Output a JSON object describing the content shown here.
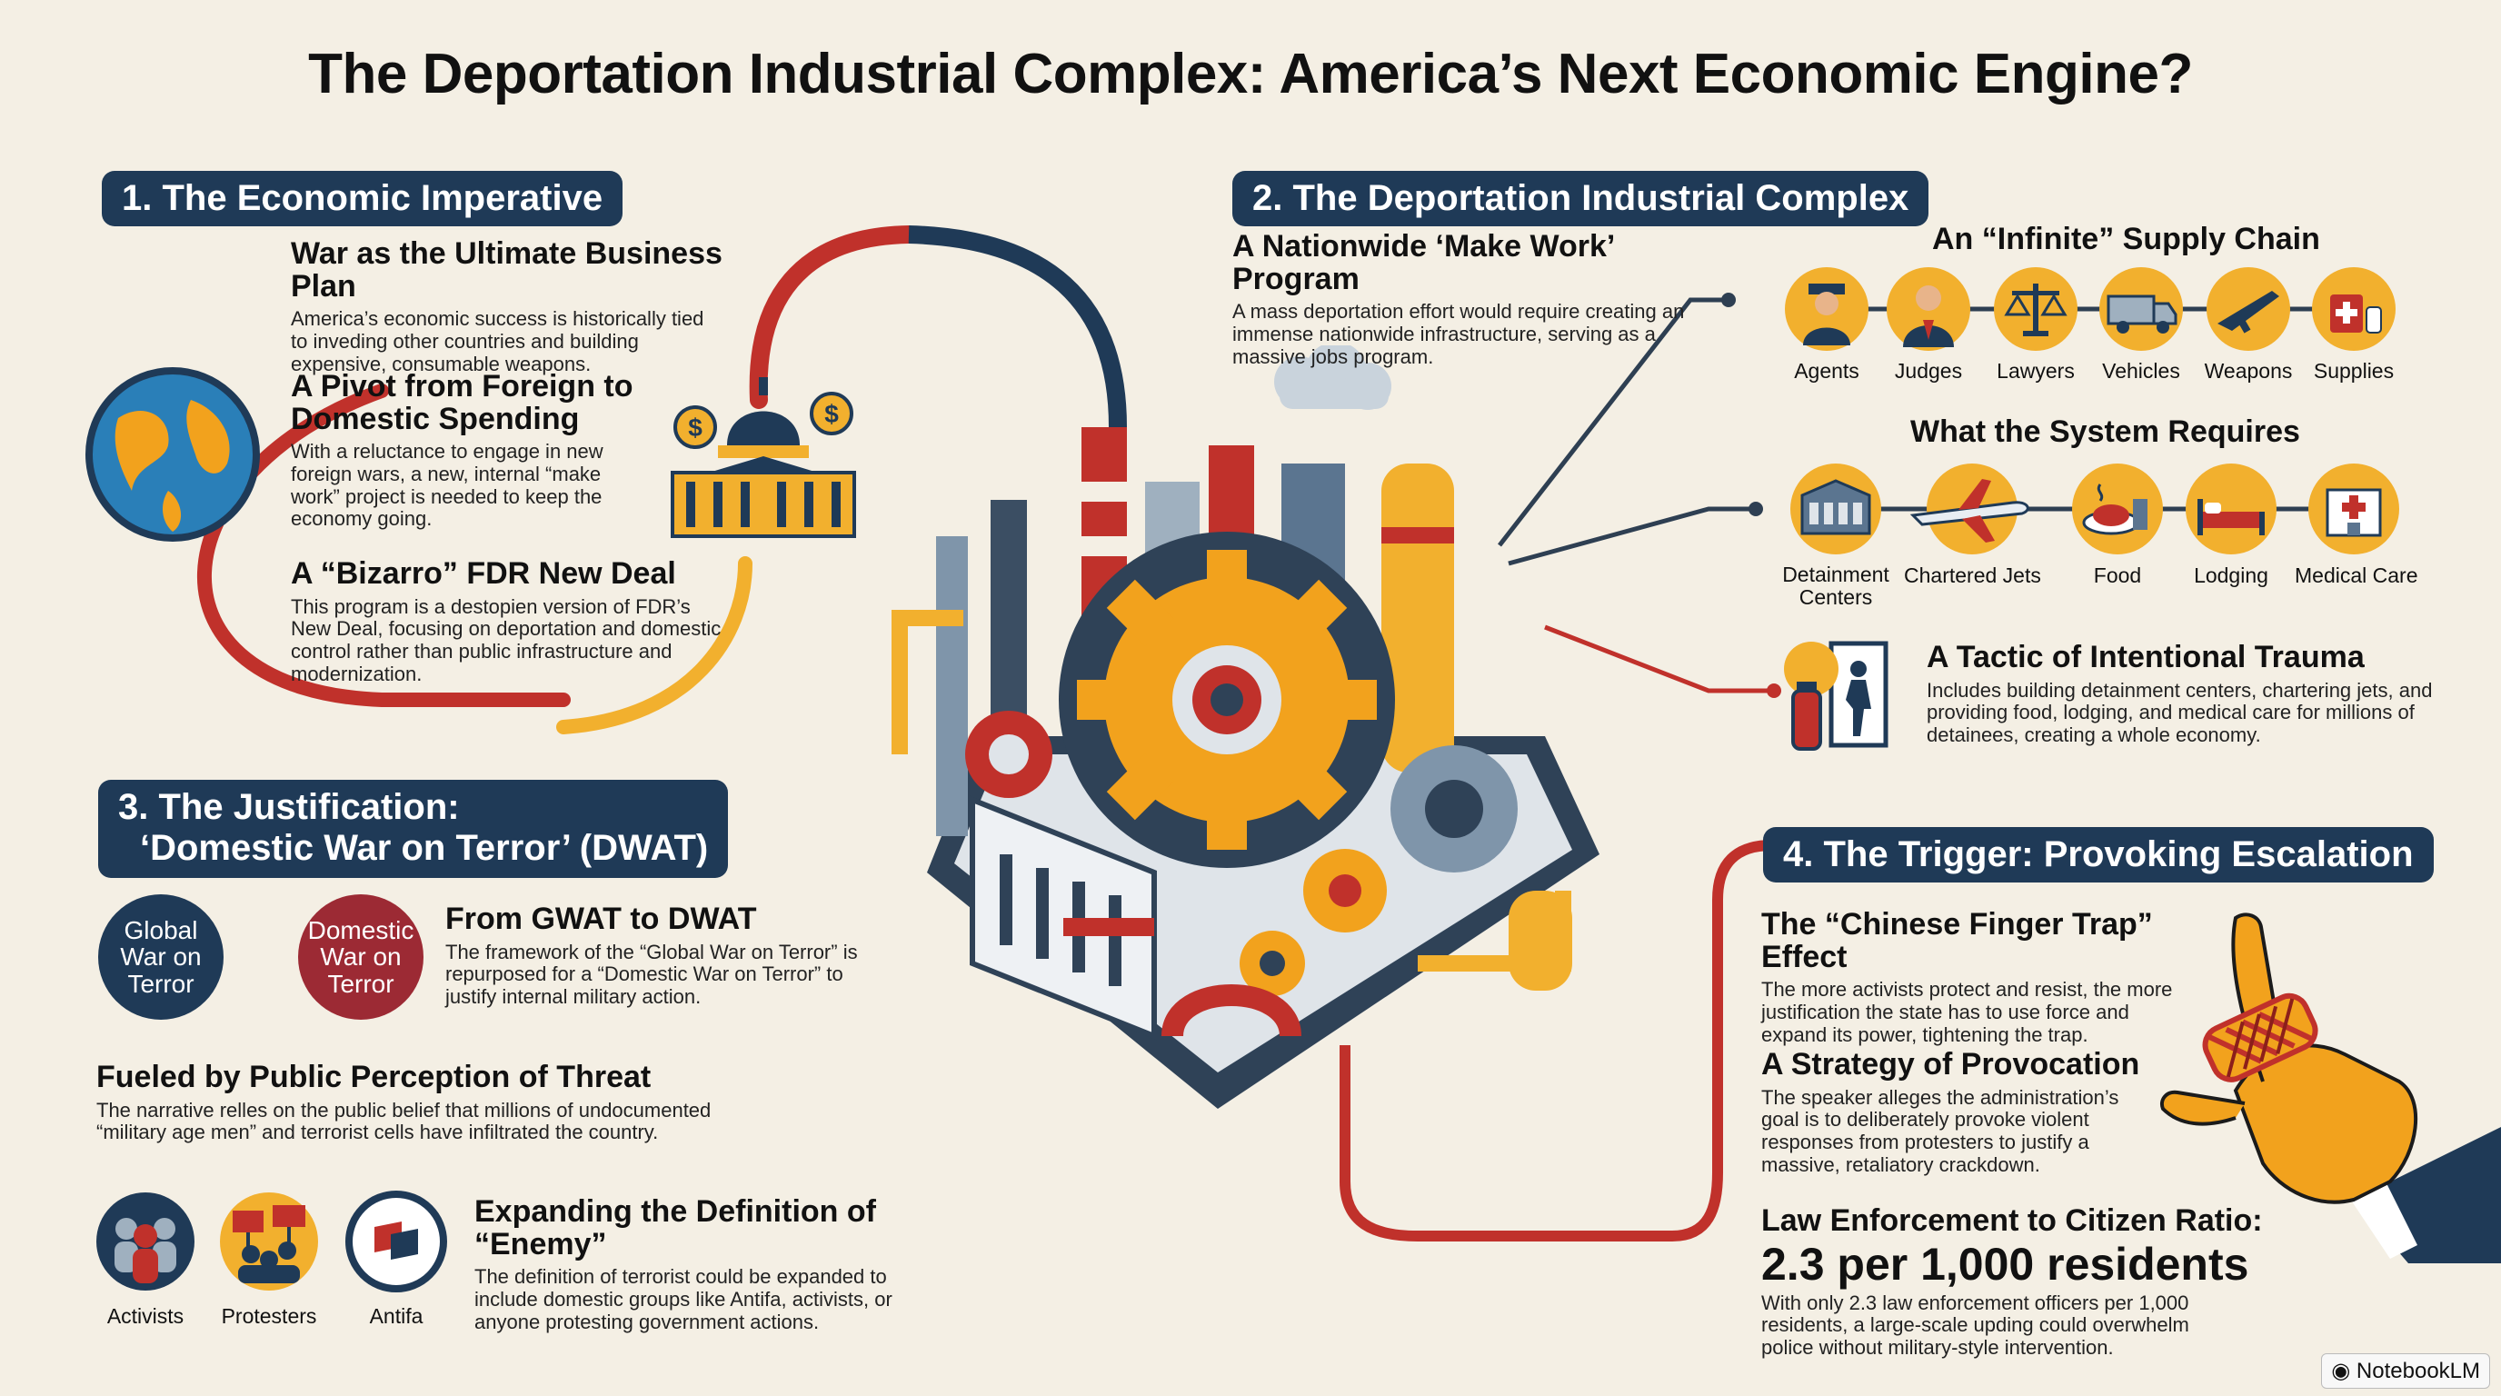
{
  "title": "The Deportation Industrial Complex: America’s Next Economic Engine?",
  "s1": {
    "heading": "1. The Economic Imperative",
    "b1": {
      "title": "War as the Ultimate Business Plan",
      "text": "America’s economic success is historically tied to inveding other countries and building expensive, consumable weapons."
    },
    "b2": {
      "title": "A Pivot from Foreign to Domestic Spending",
      "text": "With a reluctance to engage in new foreign wars, a new, internal “make work” project is needed to keep the economy going."
    },
    "b3": {
      "title": "A “Bizarro” FDR New Deal",
      "text": "This program is a destopien version of FDR’s New Deal, focusing on deportation and domestic control rather than public infrastructure and modernization."
    }
  },
  "s2": {
    "heading": "2. The Deportation Industrial Complex",
    "b1": {
      "title": "A Nationwide ‘Make Work’ Program",
      "text": "A mass deportation effort would require creating an immense nationwide infrastructure, serving as a massive jobs program."
    },
    "supply": {
      "title": "An “Infinite” Supply Chain",
      "items": [
        "Agents",
        "Judges",
        "Lawyers",
        "Vehicles",
        "Weapons",
        "Supplies"
      ]
    },
    "requires": {
      "title": "What the System Requires",
      "items": [
        "Detainment Centers",
        "Chartered Jets",
        "Food",
        "Lodging",
        "Medical Care"
      ]
    },
    "trauma": {
      "title": "A Tactic of Intentional Trauma",
      "text": "Includes building detainment centers, chartering jets, and providing food, lodging, and medical care for millions of detainees, creating a whole economy."
    }
  },
  "s3": {
    "heading_line1": "3. The Justification:",
    "heading_line2": "‘Domestic War on Terror’ (DWAT)",
    "circle1": "Global War on Terror",
    "circle2": "Domestic War on Terror",
    "b1": {
      "title": "From GWAT to DWAT",
      "text": "The framework of the “Global War on Terror” is repurposed for a “Domestic War on Terror” to justify internal military action."
    },
    "b2": {
      "title": "Fueled by Public Perception of Threat",
      "text": "The narrative relles on the public belief that millions of undocumented “military age men” and terrorist cells have infiltrated the country."
    },
    "icons": [
      "Activists",
      "Protesters",
      "Antifa"
    ],
    "b3": {
      "title": "Expanding the Definition of “Enemy”",
      "text": "The definition of terrorist could be expanded to include domestic groups like Antifa, activists, or anyone protesting government actions."
    }
  },
  "s4": {
    "heading": "4. The Trigger: Provoking Escalation",
    "b1": {
      "title": "The “Chinese Finger Trap” Effect",
      "text": "The more activists protect and resist, the more justification the state has to use force and expand its power, tightening the trap."
    },
    "b2": {
      "title": "A Strategy of Provocation",
      "text": "The speaker alleges the administration’s goal is to deliberately provoke violent responses from protesters to justify a massive, retaliatory crackdown."
    },
    "b3": {
      "title": "Law Enforcement to Citizen Ratio:",
      "big": "2.3 per 1,000 residents",
      "text": "With only 2.3 law enforcement officers per 1,000 residents, a large-scale upding could overwhelm police without military-style intervention."
    }
  },
  "badge": "NotebookLM",
  "colors": {
    "navy": "#1f3a57",
    "red": "#c0312b",
    "gold": "#f2b02e",
    "cream": "#f4efe4"
  }
}
